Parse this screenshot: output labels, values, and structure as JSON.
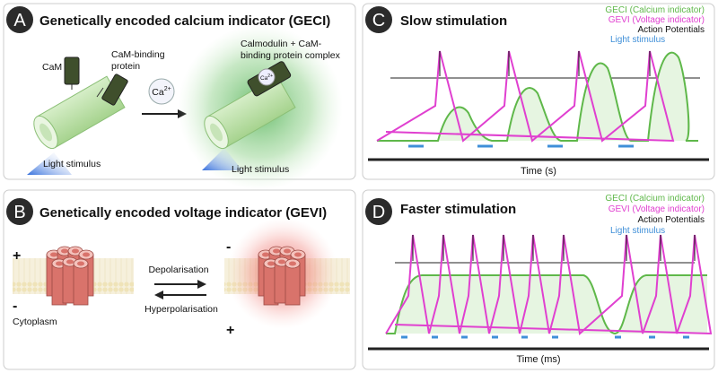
{
  "panel_a": {
    "letter": "A",
    "title": "Genetically encoded calcium indicator (GECI)",
    "cam": "CaM",
    "cam_binding": [
      "CaM-binding",
      "protein"
    ],
    "ion": {
      "base": "Ca",
      "sup": "2+"
    },
    "ion_bound": {
      "base": "Ca",
      "sup": "2+"
    },
    "complex": [
      "Calmodulin + CaM-",
      "binding protein complex"
    ],
    "light_before": "Light stimulus",
    "light_after": "Light stimulus"
  },
  "panel_b": {
    "letter": "B",
    "title": "Genetically encoded voltage indicator (GEVI)",
    "left_top": "+",
    "left_bottom": "-",
    "cytoplasm": "Cytoplasm",
    "right_top": "-",
    "right_bottom": "+",
    "depol": "Depolarisation",
    "hyperpol": "Hyperpolarisation"
  },
  "panel_c": {
    "letter": "C",
    "title": "Slow stimulation",
    "legend": [
      "GECI (Calcium indicator)",
      "GEVI (Voltage indicator)",
      "Action Potentials",
      "Light stimulus"
    ],
    "x_label": "Time (s)"
  },
  "panel_d": {
    "letter": "D",
    "title": "Faster stimulation",
    "legend": [
      "GECI (Calcium indicator)",
      "GEVI (Voltage indicator)",
      "Action Potentials",
      "Light stimulus"
    ],
    "x_label": "Time (ms)"
  }
}
